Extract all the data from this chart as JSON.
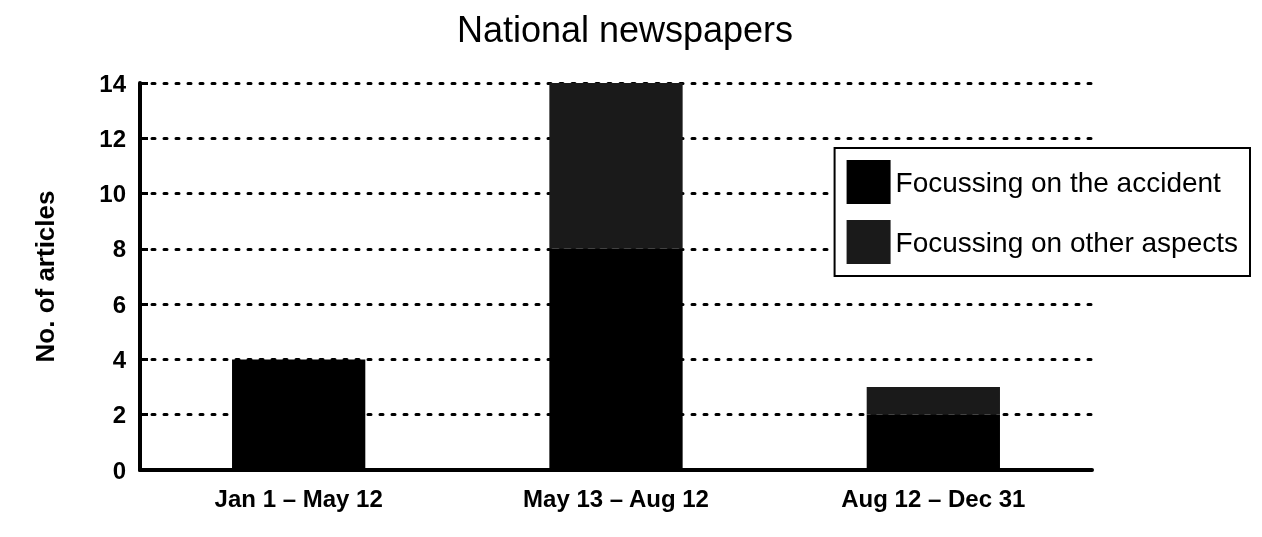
{
  "chart_data": {
    "type": "bar",
    "title": "National newspapers",
    "ylabel": "No. of articles",
    "categories": [
      "Jan 1 – May 12",
      "May 13 – Aug 12",
      "Aug 12 – Dec 31"
    ],
    "stacked": true,
    "series": [
      {
        "name": "Focussing on the accident",
        "color": "#000000",
        "values": [
          4,
          8,
          2
        ]
      },
      {
        "name": "Focussing on other aspects",
        "color": "#1a1a1a",
        "values": [
          0,
          6,
          1
        ]
      }
    ],
    "ylim": [
      0,
      14
    ],
    "yticks": [
      0,
      2,
      4,
      6,
      8,
      10,
      12,
      14
    ],
    "grid": "y",
    "legend": "right"
  }
}
